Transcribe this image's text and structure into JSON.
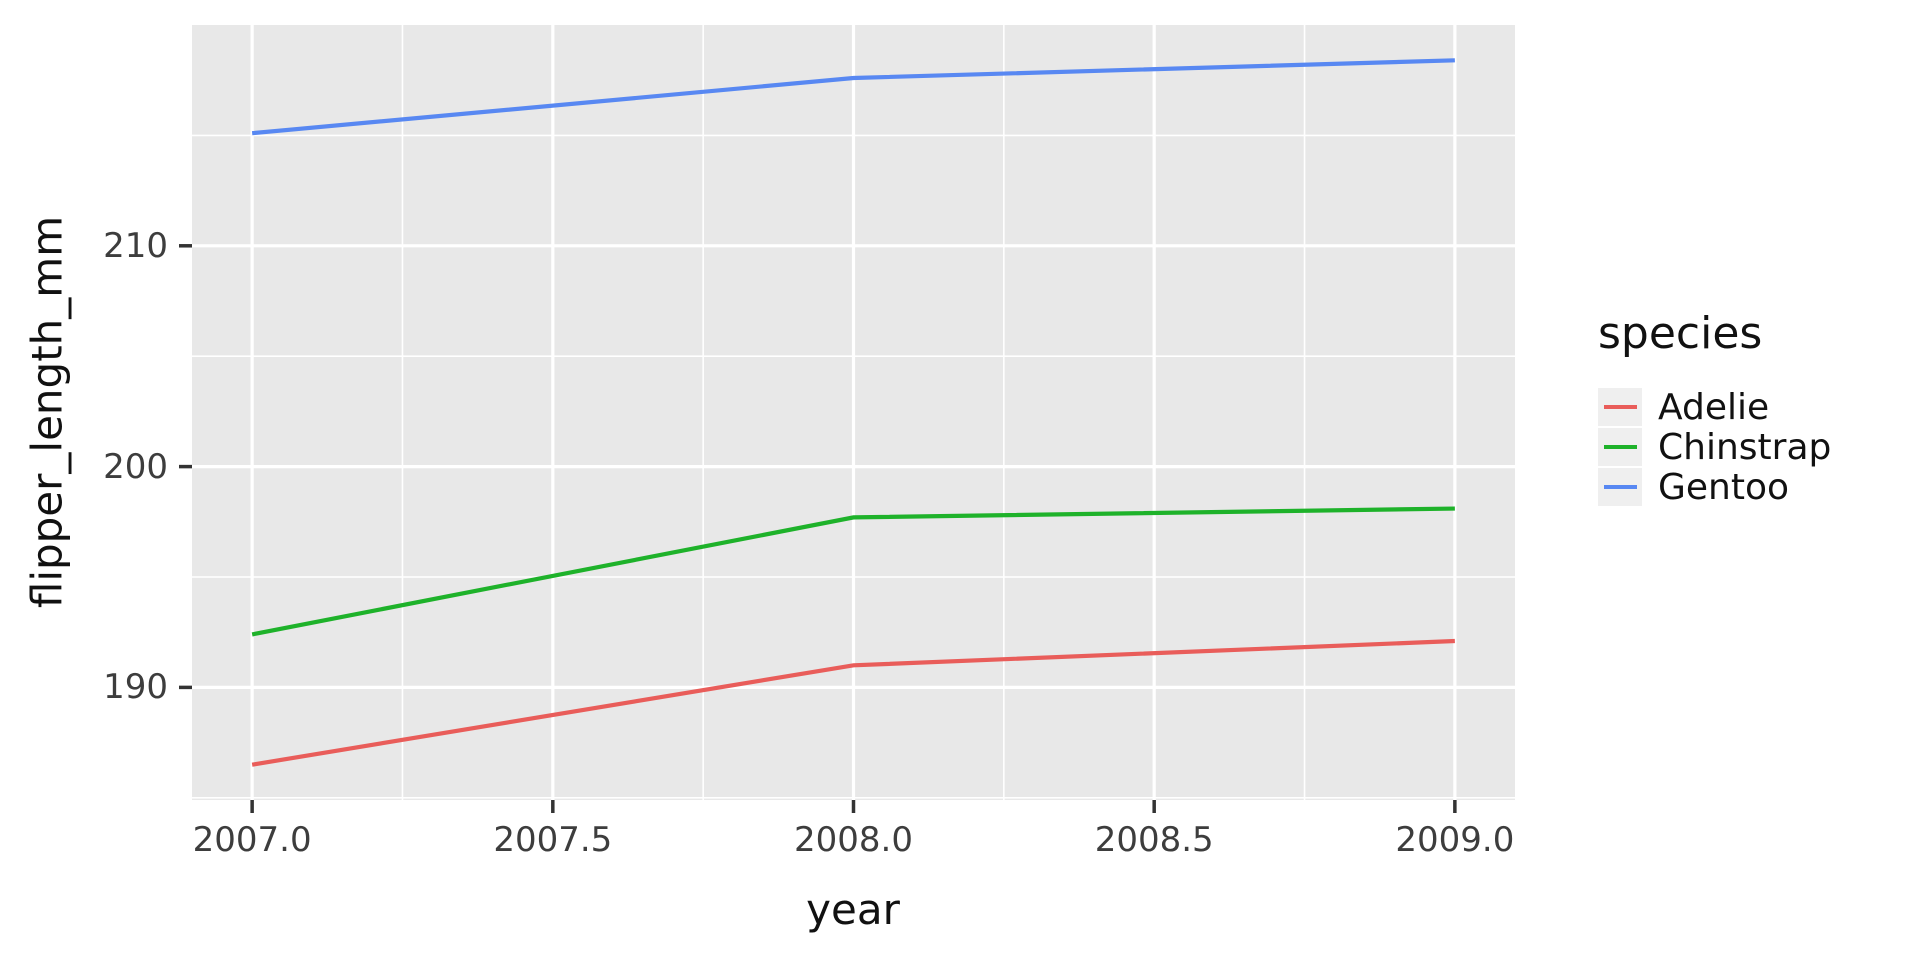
{
  "figure": {
    "background": "#ffffff"
  },
  "chart_data": {
    "type": "line",
    "title": "",
    "xlabel": "year",
    "ylabel": "flipper_length_mm",
    "x": [
      2007,
      2008,
      2009
    ],
    "series": [
      {
        "name": "Adelie",
        "color": "#E95D5A",
        "values": [
          186.5,
          191.0,
          192.1
        ]
      },
      {
        "name": "Chinstrap",
        "color": "#1EB22A",
        "values": [
          192.4,
          197.7,
          198.1
        ]
      },
      {
        "name": "Gentoo",
        "color": "#5888F2",
        "values": [
          215.1,
          217.6,
          218.4
        ]
      }
    ],
    "xlim": [
      2006.9,
      2009.1
    ],
    "ylim": [
      184.9,
      220.0
    ],
    "x_ticks": {
      "values": [
        2007,
        2007.5,
        2008,
        2008.5,
        2009
      ],
      "labels": [
        "2007.0",
        "2007.5",
        "2008.0",
        "2008.5",
        "2009.0"
      ]
    },
    "y_ticks": {
      "values": [
        190,
        200,
        210
      ],
      "labels": [
        "190",
        "200",
        "210"
      ]
    },
    "x_minor": [
      2007.25,
      2007.75,
      2008.25,
      2008.75
    ],
    "y_minor": [
      185,
      195,
      205,
      215
    ],
    "grid": true,
    "panel_background": "#E8E8E8",
    "gridline_color": "#FFFFFF",
    "tick_color": "#333333",
    "legend": {
      "title": "species",
      "position": "right",
      "entries": [
        "Adelie",
        "Chinstrap",
        "Gentoo"
      ]
    }
  }
}
